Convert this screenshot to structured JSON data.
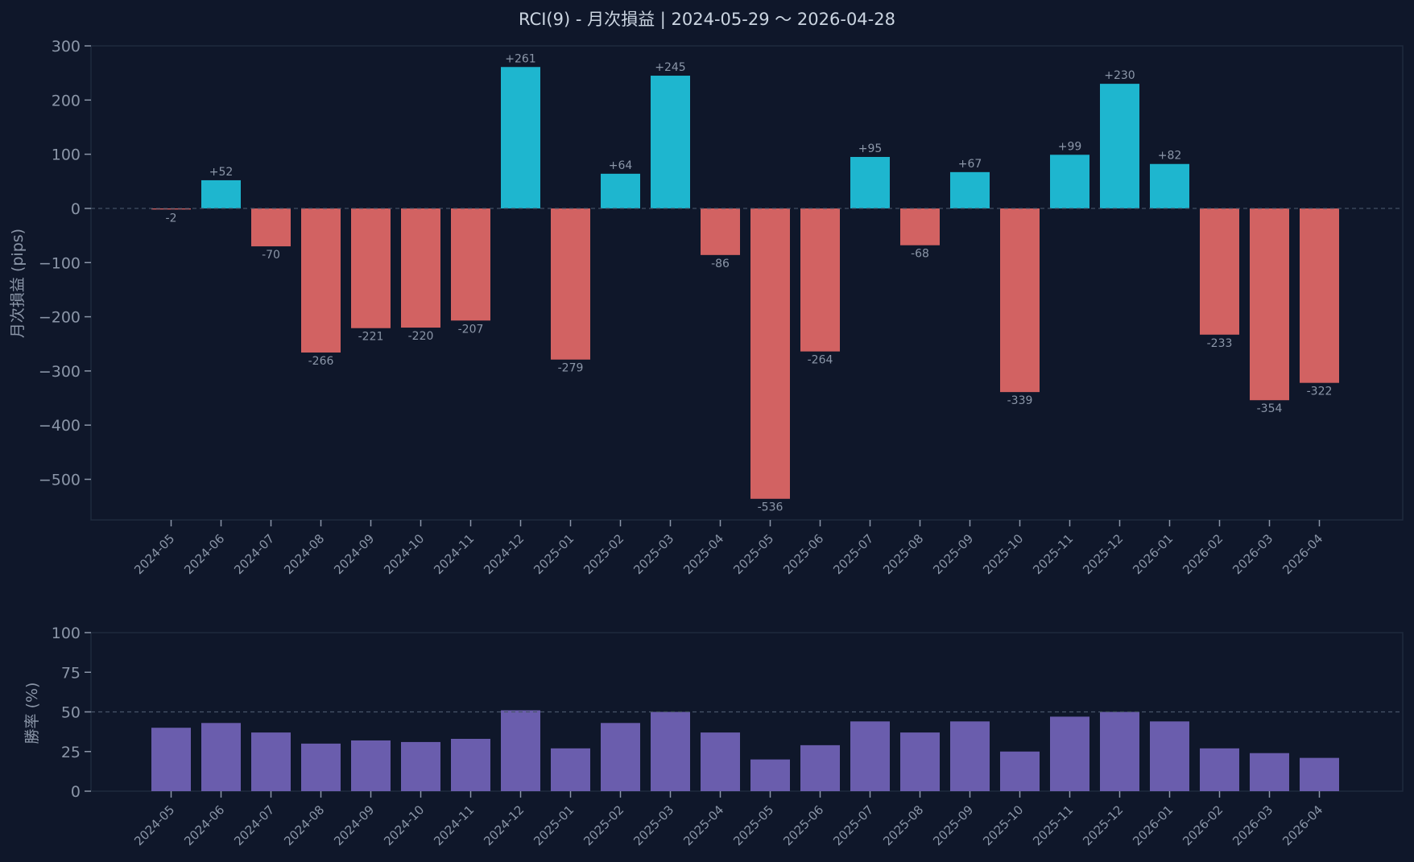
{
  "title": "RCI(9) - 月次損益 | 2024-05-29 〜 2026-04-28",
  "colors": {
    "background": "#0f172a",
    "positive": "#1eb6cf",
    "negative": "#d26262",
    "winrate": "#6a5dad",
    "text": "#8b96a8",
    "title": "#cbd5e1"
  },
  "chart_data": [
    {
      "type": "bar",
      "title": "RCI(9) - 月次損益 | 2024-05-29 〜 2026-04-28",
      "ylabel": "月次損益 (pips)",
      "xlabel": "",
      "ylim": [
        -575,
        300
      ],
      "yticks": [
        300,
        200,
        100,
        0,
        -100,
        -200,
        -300,
        -400,
        -500
      ],
      "ytick_labels": [
        "300",
        "200",
        "100",
        "0",
        "−100",
        "−200",
        "−300",
        "−400",
        "−500"
      ],
      "reference_line": 0,
      "categories": [
        "2024-05",
        "2024-06",
        "2024-07",
        "2024-08",
        "2024-09",
        "2024-10",
        "2024-11",
        "2024-12",
        "2025-01",
        "2025-02",
        "2025-03",
        "2025-04",
        "2025-05",
        "2025-06",
        "2025-07",
        "2025-08",
        "2025-09",
        "2025-10",
        "2025-11",
        "2025-12",
        "2026-01",
        "2026-02",
        "2026-03",
        "2026-04"
      ],
      "values": [
        -2,
        52,
        -70,
        -266,
        -221,
        -220,
        -207,
        261,
        -279,
        64,
        245,
        -86,
        -536,
        -264,
        95,
        -68,
        67,
        -339,
        99,
        230,
        82,
        -233,
        -354,
        -322
      ],
      "data_labels": [
        "-2",
        "+52",
        "-70",
        "-266",
        "-221",
        "-220",
        "-207",
        "+261",
        "-279",
        "+64",
        "+245",
        "-86",
        "-536",
        "-264",
        "+95",
        "-68",
        "+67",
        "-339",
        "+99",
        "+230",
        "+82",
        "-233",
        "-354",
        "-322"
      ]
    },
    {
      "type": "bar",
      "title": "",
      "ylabel": "勝率 (%)",
      "xlabel": "",
      "ylim": [
        0,
        100
      ],
      "yticks": [
        100,
        75,
        50,
        25,
        0
      ],
      "ytick_labels": [
        "100",
        "75",
        "50",
        "25",
        "0"
      ],
      "reference_line": 50,
      "categories": [
        "2024-05",
        "2024-06",
        "2024-07",
        "2024-08",
        "2024-09",
        "2024-10",
        "2024-11",
        "2024-12",
        "2025-01",
        "2025-02",
        "2025-03",
        "2025-04",
        "2025-05",
        "2025-06",
        "2025-07",
        "2025-08",
        "2025-09",
        "2025-10",
        "2025-11",
        "2025-12",
        "2026-01",
        "2026-02",
        "2026-03",
        "2026-04"
      ],
      "values": [
        40,
        43,
        37,
        30,
        32,
        31,
        33,
        51,
        27,
        43,
        50,
        37,
        20,
        29,
        44,
        37,
        44,
        25,
        47,
        50,
        44,
        27,
        24,
        21
      ]
    }
  ]
}
